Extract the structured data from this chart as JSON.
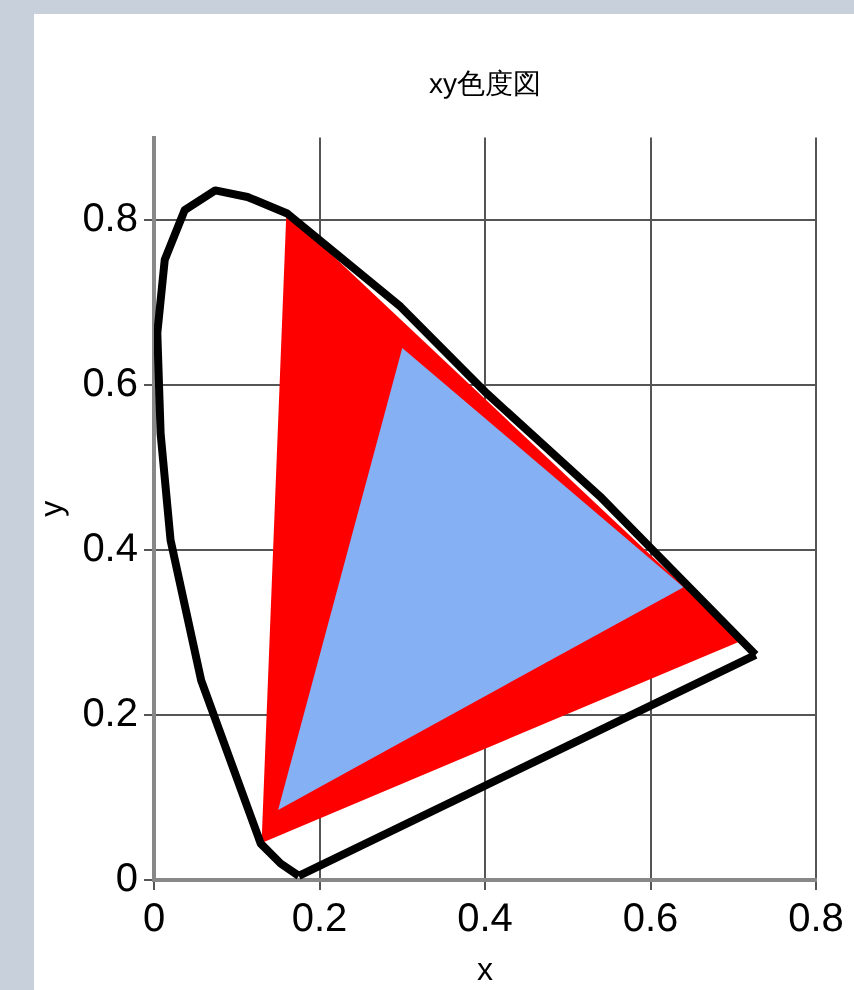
{
  "chart_data": {
    "type": "line",
    "title": "xy色度図",
    "xlabel": "x",
    "ylabel": "y",
    "xlim": [
      0,
      0.8
    ],
    "xticks": [
      0,
      0.2,
      0.4,
      0.6,
      0.8
    ],
    "ylim": [
      0,
      0.9
    ],
    "yticks": [
      0,
      0.2,
      0.4,
      0.6,
      0.8
    ],
    "grid": true,
    "legend": false,
    "marker": "none",
    "series": [
      {
        "type": "line",
        "color": "#000000",
        "x": [
          0.727,
          0.539,
          0.402,
          0.298,
          0.161,
          0.113,
          0.074,
          0.037,
          0.013,
          0.004,
          0.008,
          0.02,
          0.057,
          0.129,
          0.153,
          0.175
        ],
        "values": [
          0.273,
          0.465,
          0.59,
          0.695,
          0.808,
          0.828,
          0.836,
          0.812,
          0.752,
          0.663,
          0.541,
          0.412,
          0.242,
          0.044,
          0.02,
          0.005
        ]
      },
      {
        "type": "line",
        "color": "#000000",
        "x": [
          0.175,
          0.727
        ],
        "values": [
          0.005,
          0.273
        ]
      },
      {
        "type": "area",
        "color": "#86b0f4",
        "x": [
          0.64,
          0.3,
          0.15,
          0.64
        ],
        "values": [
          0.355,
          0.645,
          0.085,
          0.355
        ]
      },
      {
        "type": "area",
        "color": "#ff0000",
        "x": [
          0.71,
          0.16,
          0.13,
          0.71
        ],
        "values": [
          0.29,
          0.81,
          0.045,
          0.29
        ]
      }
    ]
  }
}
